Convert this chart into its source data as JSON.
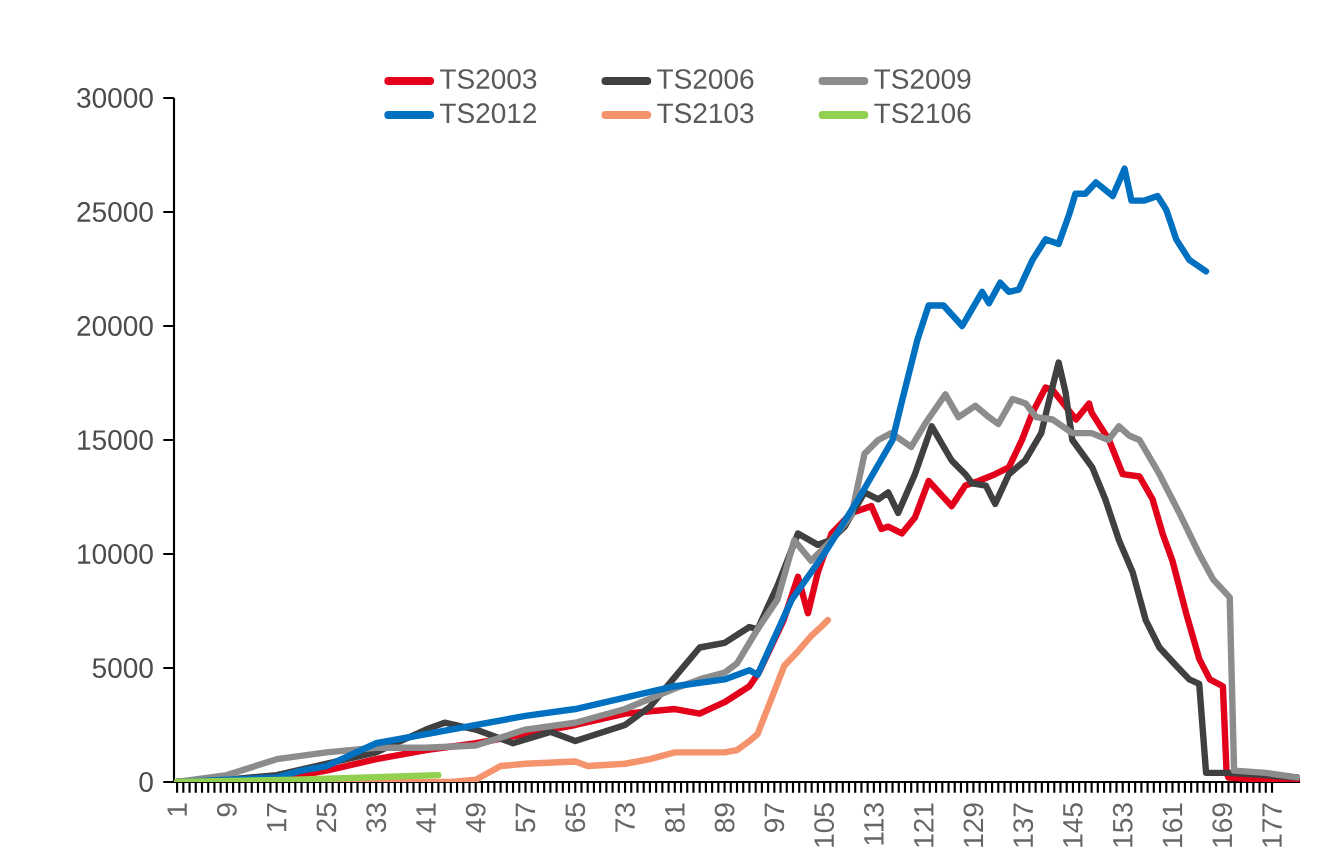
{
  "chart_data": {
    "type": "line",
    "xlim": [
      0.5,
      181.5
    ],
    "xticks": [
      1,
      9,
      17,
      25,
      33,
      41,
      49,
      57,
      65,
      73,
      81,
      89,
      97,
      105,
      113,
      121,
      129,
      137,
      145,
      153,
      161,
      169,
      177
    ],
    "ylim": [
      0,
      30000
    ],
    "yticks": [
      0,
      5000,
      10000,
      15000,
      20000,
      25000,
      30000
    ],
    "grid": false,
    "legend": "top",
    "marker": "none",
    "line_style": "solid",
    "series": [
      {
        "name": "TS2003",
        "color": "#e3001b",
        "x": [
          1,
          9,
          17,
          25,
          33,
          41,
          49,
          57,
          65,
          73,
          81,
          85,
          89,
          93,
          94.5,
          98.5,
          100.8,
          102.4,
          104,
          106.2,
          109.4,
          112.6,
          114.2,
          115.3,
          117.5,
          119.6,
          121.8,
          125.5,
          127.7,
          129.8,
          132.5,
          134.7,
          136.8,
          138.5,
          140.6,
          141.7,
          145.5,
          147.6,
          148,
          150.8,
          153,
          155.7,
          157.8,
          159.4,
          161,
          163.2,
          165.3,
          167,
          169.1,
          169.7,
          170,
          175,
          181
        ],
        "values": [
          0,
          0,
          100,
          500,
          1000,
          1400,
          1700,
          2100,
          2500,
          3000,
          3200,
          3000,
          3500,
          4200,
          4800,
          7100,
          9000,
          7400,
          9200,
          10900,
          11800,
          12100,
          11100,
          11200,
          10900,
          11600,
          13200,
          12100,
          13000,
          13200,
          13500,
          13800,
          15000,
          16200,
          17300,
          17200,
          15900,
          16600,
          16200,
          15000,
          13500,
          13400,
          12400,
          10900,
          9700,
          7400,
          5400,
          4500,
          4200,
          400,
          200,
          100,
          100
        ]
      },
      {
        "name": "TS2006",
        "color": "#404040",
        "x": [
          1,
          9,
          17,
          25,
          33,
          37,
          41,
          44,
          49,
          55,
          61,
          65,
          73,
          77,
          81,
          85,
          89,
          93,
          94.3,
          97.5,
          100.8,
          104,
          106,
          108.3,
          111.5,
          113.7,
          115.3,
          116.9,
          119.6,
          122.3,
          125.5,
          127.7,
          128.8,
          131,
          132.5,
          134.7,
          137.3,
          139.9,
          141.5,
          142.7,
          143.8,
          144.9,
          148.1,
          150.2,
          152.4,
          154.6,
          156.7,
          158.9,
          161.6,
          163.7,
          165.3,
          166.4,
          170,
          176,
          181
        ],
        "values": [
          0,
          100,
          300,
          800,
          1300,
          1800,
          2300,
          2600,
          2300,
          1700,
          2200,
          1800,
          2500,
          3300,
          4600,
          5900,
          6100,
          6800,
          6700,
          8600,
          10900,
          10400,
          10600,
          11200,
          12700,
          12400,
          12700,
          11800,
          13500,
          15600,
          14100,
          13500,
          13100,
          13000,
          12200,
          13500,
          14100,
          15300,
          17100,
          18400,
          17100,
          15000,
          13800,
          12400,
          10600,
          9200,
          7100,
          5900,
          5100,
          4500,
          4300,
          400,
          400,
          300,
          200
        ]
      },
      {
        "name": "TS2009",
        "color": "#8c8c8c",
        "x": [
          1,
          9,
          17,
          25,
          33,
          41,
          49,
          57,
          65,
          73,
          81,
          85,
          89,
          91,
          94.3,
          97.5,
          100.2,
          102.9,
          106.2,
          109.4,
          111.5,
          113.7,
          115.8,
          119,
          121.2,
          124.5,
          126.6,
          129.3,
          131.5,
          133,
          135.3,
          137.4,
          139.1,
          141.7,
          144.9,
          148,
          150.7,
          152.4,
          154,
          155.7,
          158.9,
          162.1,
          165.3,
          167.5,
          170.2,
          170.9,
          176,
          181
        ],
        "values": [
          0,
          300,
          1000,
          1300,
          1500,
          1500,
          1600,
          2300,
          2600,
          3200,
          4100,
          4500,
          4800,
          5200,
          6700,
          8000,
          10600,
          9700,
          10600,
          11700,
          14400,
          15000,
          15300,
          14700,
          15700,
          17000,
          16000,
          16500,
          16000,
          15700,
          16800,
          16600,
          16000,
          15900,
          15300,
          15300,
          15000,
          15600,
          15200,
          15000,
          13500,
          11800,
          10000,
          8900,
          8100,
          500,
          400,
          200
        ]
      },
      {
        "name": "TS2012",
        "color": "#0070c0",
        "x": [
          1,
          9,
          17,
          21,
          25,
          33,
          41,
          49,
          57,
          65,
          73,
          81,
          89,
          93,
          94.3,
          99.8,
          105,
          110.5,
          116,
          117.6,
          120,
          121.8,
          124.2,
          127.2,
          130.4,
          131.5,
          133.3,
          134.7,
          136.3,
          138.5,
          140.6,
          142.7,
          144.4,
          145.4,
          147,
          148.7,
          151.4,
          153.3,
          154.4,
          156.5,
          158.6,
          160,
          161.6,
          163.7,
          166.4
        ],
        "values": [
          0,
          100,
          200,
          500,
          700,
          1700,
          2100,
          2500,
          2900,
          3200,
          3700,
          4200,
          4500,
          4900,
          4700,
          8000,
          10000,
          12400,
          15000,
          16800,
          19400,
          20900,
          20900,
          20000,
          21500,
          21000,
          21900,
          21500,
          21600,
          22900,
          23800,
          23600,
          24900,
          25800,
          25800,
          26300,
          25700,
          26900,
          25500,
          25500,
          25700,
          25100,
          23800,
          22900,
          22400
        ]
      },
      {
        "name": "TS2103",
        "color": "#f4936c",
        "x": [
          1,
          41,
          45,
          49,
          53,
          57,
          65,
          67,
          73,
          77,
          81,
          89,
          91,
          93,
          94.3,
          98.6,
          100.7,
          102.9,
          104.5,
          105.6
        ],
        "values": [
          0,
          0,
          0,
          100,
          700,
          800,
          900,
          700,
          800,
          1000,
          1300,
          1300,
          1400,
          1800,
          2100,
          5100,
          5700,
          6400,
          6800,
          7100
        ]
      },
      {
        "name": "TS2106",
        "color": "#92d050",
        "x": [
          1,
          20,
          43
        ],
        "values": [
          0,
          100,
          300
        ]
      }
    ]
  }
}
